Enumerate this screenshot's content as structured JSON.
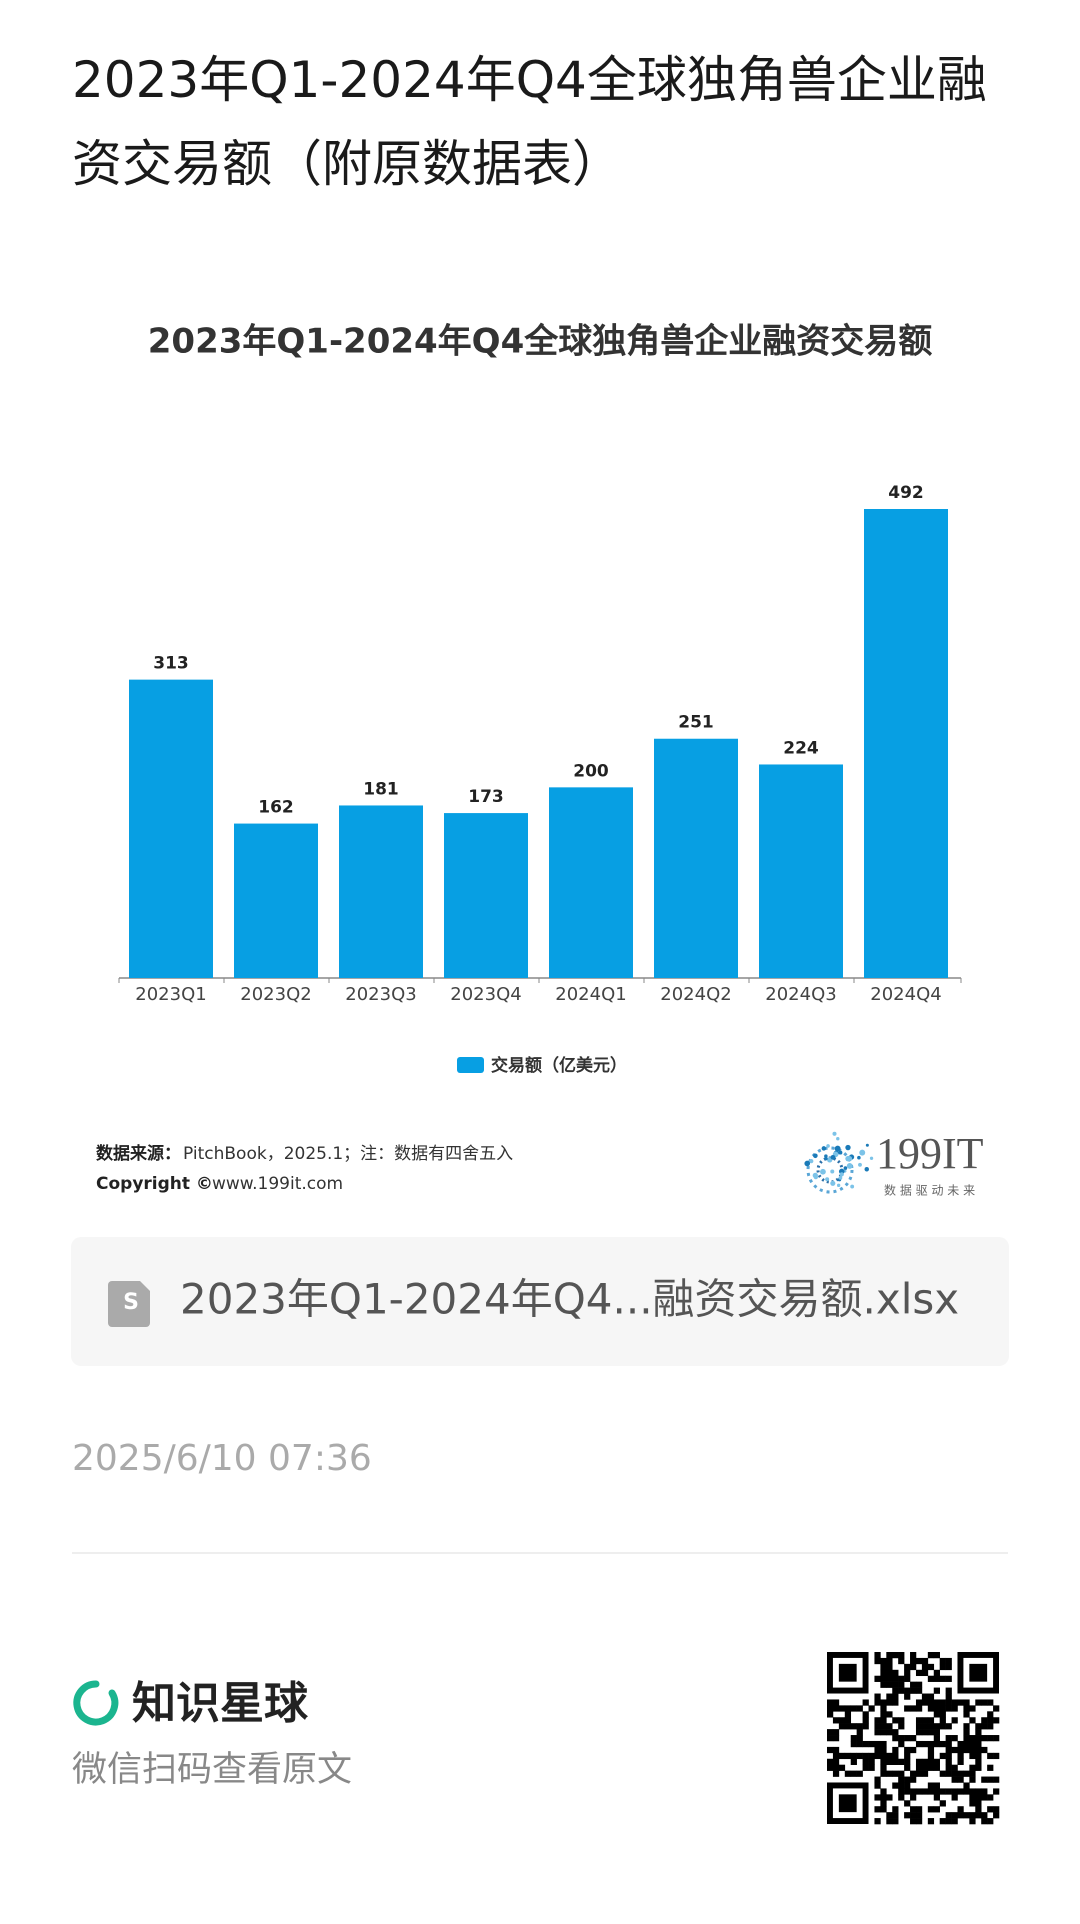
{
  "header": {
    "title": "2023年Q1-2024年Q4全球独角兽企业融资交易额（附原数据表）"
  },
  "chart_data": {
    "type": "bar",
    "title": "2023年Q1-2024年Q4全球独角兽企业融资交易额",
    "categories": [
      "2023Q1",
      "2023Q2",
      "2023Q3",
      "2023Q4",
      "2024Q1",
      "2024Q2",
      "2024Q3",
      "2024Q4"
    ],
    "series": [
      {
        "name": "交易额（亿美元）",
        "color": "#079fe3",
        "values": [
          313,
          162,
          181,
          173,
          200,
          251,
          224,
          492
        ]
      }
    ]
  },
  "source": {
    "label": "数据来源：",
    "text": "PitchBook，2025.1；注：数据有四舍五入",
    "copyright_label": "Copyright ©",
    "copyright_text": "www.199it.com"
  },
  "logo": {
    "name": "199IT",
    "slogan": "数 据 驱 动 未 来"
  },
  "attachment": {
    "filename": "2023年Q1-2024年Q4...融资交易额.xlsx"
  },
  "timestamp": "2025/6/10 07:36",
  "footer": {
    "brand": "知识星球",
    "caption": "微信扫码查看原文"
  }
}
